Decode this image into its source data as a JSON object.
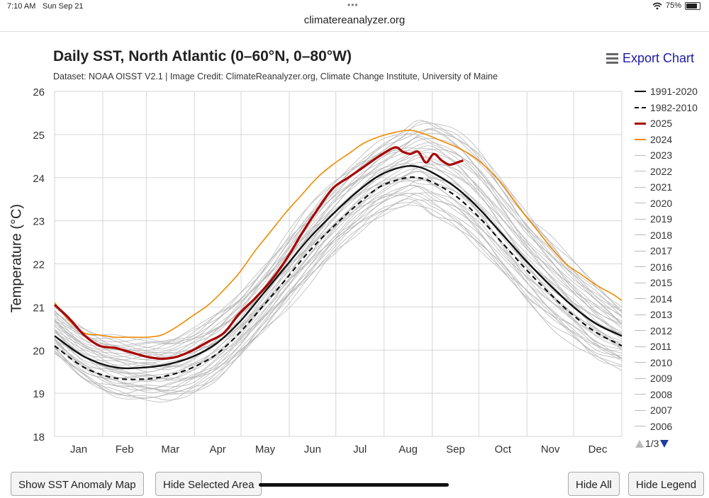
{
  "status_bar": {
    "time": "7:10 AM",
    "date": "Sun Sep 21",
    "battery": "75%"
  },
  "browser": {
    "url": "climatereanalyzer.org"
  },
  "header": {
    "title": "Daily SST, North Atlantic (0–60°N, 0–80°W)",
    "subtitle": "Dataset: NOAA OISST V2.1 | Image Credit: ClimateReanalyzer.org, Climate Change Institute, University of Maine",
    "export_label": "Export Chart"
  },
  "buttons": {
    "anomaly_map": "Show SST Anomaly Map",
    "hide_selected": "Hide Selected Area",
    "hide_all": "Hide All",
    "hide_legend": "Hide Legend"
  },
  "legend": {
    "items": [
      {
        "label": "1991-2020",
        "color": "#111111",
        "style": "solid"
      },
      {
        "label": "1982-2010",
        "color": "#111111",
        "style": "dashed"
      },
      {
        "label": "2025",
        "color": "#a80000",
        "style": "thick"
      },
      {
        "label": "2024",
        "color": "#f08a00",
        "style": "solid"
      },
      {
        "label": "2023",
        "color": "#bbbbbb",
        "style": "thin"
      },
      {
        "label": "2022",
        "color": "#bbbbbb",
        "style": "thin"
      },
      {
        "label": "2021",
        "color": "#bbbbbb",
        "style": "thin"
      },
      {
        "label": "2020",
        "color": "#bbbbbb",
        "style": "thin"
      },
      {
        "label": "2019",
        "color": "#bbbbbb",
        "style": "thin"
      },
      {
        "label": "2018",
        "color": "#bbbbbb",
        "style": "thin"
      },
      {
        "label": "2017",
        "color": "#bbbbbb",
        "style": "thin"
      },
      {
        "label": "2016",
        "color": "#bbbbbb",
        "style": "thin"
      },
      {
        "label": "2015",
        "color": "#bbbbbb",
        "style": "thin"
      },
      {
        "label": "2014",
        "color": "#bbbbbb",
        "style": "thin"
      },
      {
        "label": "2013",
        "color": "#bbbbbb",
        "style": "thin"
      },
      {
        "label": "2012",
        "color": "#bbbbbb",
        "style": "thin"
      },
      {
        "label": "2011",
        "color": "#bbbbbb",
        "style": "thin"
      },
      {
        "label": "2010",
        "color": "#bbbbbb",
        "style": "thin"
      },
      {
        "label": "2009",
        "color": "#bbbbbb",
        "style": "thin"
      },
      {
        "label": "2008",
        "color": "#bbbbbb",
        "style": "thin"
      },
      {
        "label": "2007",
        "color": "#bbbbbb",
        "style": "thin"
      },
      {
        "label": "2006",
        "color": "#bbbbbb",
        "style": "thin"
      }
    ],
    "page": "1/3"
  },
  "chart_data": {
    "type": "line",
    "title": "Daily SST, North Atlantic (0–60°N, 0–80°W)",
    "xlabel": "",
    "ylabel": "Temperature (°C)",
    "ylim": [
      18,
      26
    ],
    "xlim": [
      1,
      366
    ],
    "grid": true,
    "legend_position": "right",
    "y_ticks": [
      18,
      19,
      20,
      21,
      22,
      23,
      24,
      25,
      26
    ],
    "month_labels": [
      "Jan",
      "Feb",
      "Mar",
      "Apr",
      "May",
      "Jun",
      "Jul",
      "Aug",
      "Sep",
      "Oct",
      "Nov",
      "Dec"
    ],
    "series": [
      {
        "name": "1991-2020",
        "color": "#111111",
        "x": [
          1,
          20,
          40,
          60,
          75,
          90,
          105,
          120,
          135,
          150,
          165,
          180,
          195,
          210,
          225,
          235,
          245,
          260,
          275,
          290,
          305,
          320,
          335,
          350,
          366
        ],
        "values": [
          20.33,
          19.85,
          19.6,
          19.6,
          19.68,
          19.85,
          20.15,
          20.65,
          21.3,
          21.95,
          22.6,
          23.15,
          23.65,
          24.05,
          24.25,
          24.25,
          24.1,
          23.75,
          23.25,
          22.65,
          22.05,
          21.5,
          21.0,
          20.6,
          20.33
        ]
      },
      {
        "name": "1982-2010",
        "color": "#111111",
        "x": [
          1,
          20,
          40,
          60,
          75,
          90,
          105,
          120,
          135,
          150,
          165,
          180,
          195,
          210,
          225,
          235,
          245,
          260,
          275,
          290,
          305,
          320,
          335,
          350,
          366
        ],
        "values": [
          20.1,
          19.6,
          19.35,
          19.33,
          19.42,
          19.6,
          19.9,
          20.4,
          21.02,
          21.65,
          22.3,
          22.85,
          23.35,
          23.78,
          23.98,
          24.0,
          23.88,
          23.55,
          23.05,
          22.45,
          21.85,
          21.3,
          20.8,
          20.4,
          20.1
        ]
      },
      {
        "name": "2025",
        "color": "#a80000",
        "x": [
          1,
          10,
          20,
          30,
          40,
          50,
          60,
          70,
          80,
          90,
          100,
          110,
          120,
          130,
          140,
          150,
          160,
          170,
          180,
          190,
          200,
          210,
          220,
          225,
          230,
          235,
          240,
          245,
          250,
          255,
          260,
          264
        ],
        "values": [
          21.05,
          20.75,
          20.35,
          20.1,
          20.05,
          19.95,
          19.85,
          19.8,
          19.85,
          20.0,
          20.2,
          20.4,
          20.85,
          21.2,
          21.6,
          22.1,
          22.7,
          23.25,
          23.75,
          24.0,
          24.25,
          24.5,
          24.7,
          24.6,
          24.55,
          24.6,
          24.35,
          24.55,
          24.4,
          24.3,
          24.35,
          24.4
        ]
      },
      {
        "name": "2024",
        "color": "#f08a00",
        "x": [
          1,
          10,
          20,
          30,
          40,
          50,
          60,
          70,
          80,
          90,
          100,
          110,
          120,
          130,
          140,
          150,
          160,
          170,
          180,
          190,
          200,
          210,
          220,
          230,
          240,
          250,
          260,
          270,
          280,
          290,
          300,
          310,
          320,
          330,
          340,
          350,
          360,
          366
        ],
        "values": [
          21.1,
          20.7,
          20.4,
          20.35,
          20.3,
          20.3,
          20.3,
          20.35,
          20.55,
          20.8,
          21.05,
          21.4,
          21.8,
          22.3,
          22.75,
          23.2,
          23.6,
          24.0,
          24.3,
          24.55,
          24.8,
          24.95,
          25.05,
          25.1,
          25.0,
          24.85,
          24.7,
          24.5,
          24.2,
          23.8,
          23.3,
          22.85,
          22.4,
          22.0,
          21.75,
          21.5,
          21.3,
          21.15
        ]
      }
    ],
    "spaghetti_band": {
      "description": "gray lines for years 1982-2023",
      "approx_low": [
        19.9,
        19.3,
        18.95,
        18.85,
        18.85,
        19.0,
        19.3,
        19.8,
        20.4,
        21.0,
        21.6,
        22.2,
        22.7,
        23.1,
        23.3,
        23.3,
        23.1,
        22.8,
        22.3,
        21.7,
        21.1,
        20.6,
        20.2,
        19.8,
        19.6
      ],
      "approx_high": [
        21.0,
        20.5,
        20.3,
        20.25,
        20.3,
        20.5,
        20.85,
        21.3,
        21.9,
        22.6,
        23.3,
        23.9,
        24.4,
        24.8,
        25.1,
        25.3,
        25.35,
        25.1,
        24.6,
        23.9,
        23.2,
        22.6,
        22.0,
        21.5,
        21.0
      ]
    }
  }
}
